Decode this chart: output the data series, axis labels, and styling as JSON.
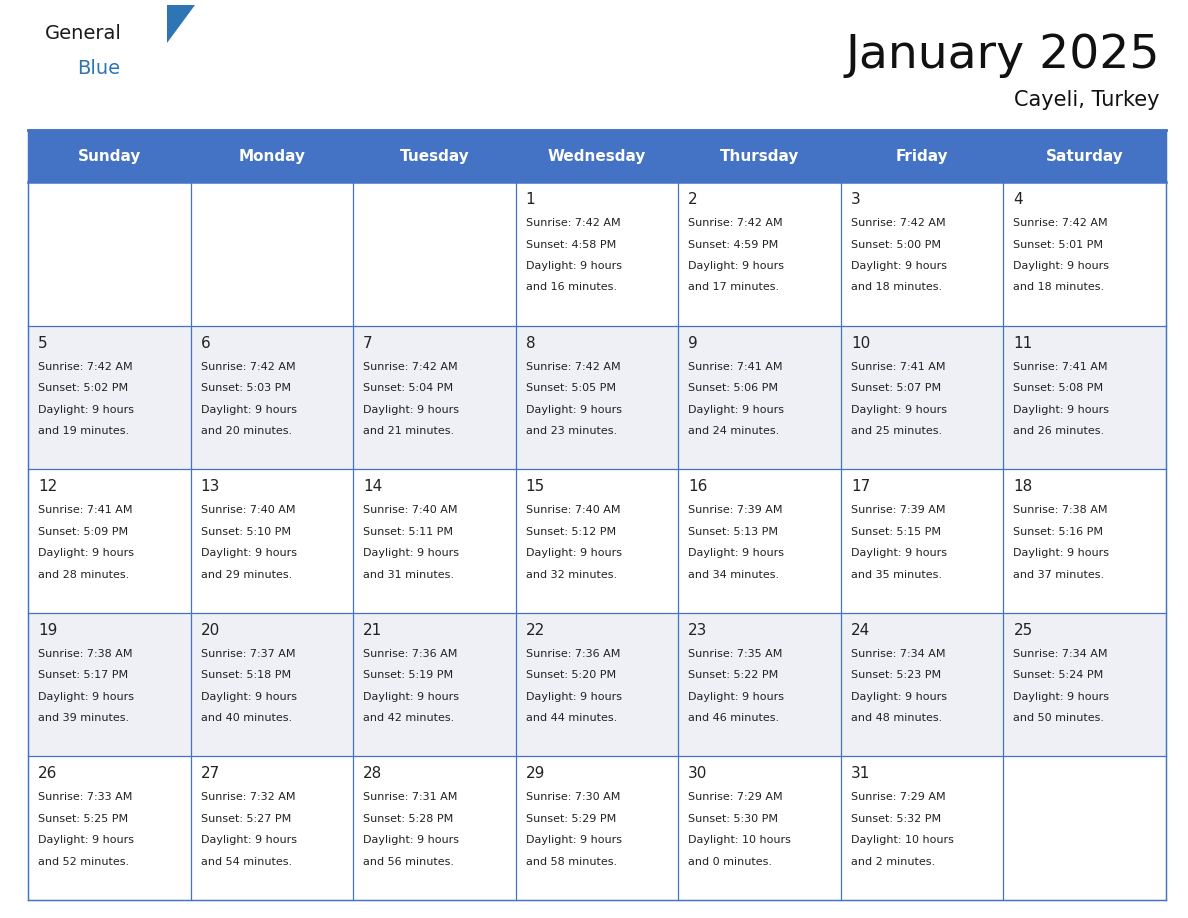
{
  "title": "January 2025",
  "subtitle": "Cayeli, Turkey",
  "days_of_week": [
    "Sunday",
    "Monday",
    "Tuesday",
    "Wednesday",
    "Thursday",
    "Friday",
    "Saturday"
  ],
  "header_bg": "#4472C4",
  "header_text": "#FFFFFF",
  "cell_bg_odd": "#FFFFFF",
  "cell_bg_even": "#EEF0F5",
  "grid_line_color": "#4472C4",
  "text_color": "#222222",
  "title_color": "#111111",
  "general_color": "#1a1a1a",
  "blue_color": "#2E75B6",
  "triangle_color": "#2E75B6",
  "calendar_data": [
    [
      {
        "day": null,
        "sunrise": null,
        "sunset": null,
        "daylight": null
      },
      {
        "day": null,
        "sunrise": null,
        "sunset": null,
        "daylight": null
      },
      {
        "day": null,
        "sunrise": null,
        "sunset": null,
        "daylight": null
      },
      {
        "day": 1,
        "sunrise": "7:42 AM",
        "sunset": "4:58 PM",
        "daylight": "9 hours and 16 minutes."
      },
      {
        "day": 2,
        "sunrise": "7:42 AM",
        "sunset": "4:59 PM",
        "daylight": "9 hours and 17 minutes."
      },
      {
        "day": 3,
        "sunrise": "7:42 AM",
        "sunset": "5:00 PM",
        "daylight": "9 hours and 18 minutes."
      },
      {
        "day": 4,
        "sunrise": "7:42 AM",
        "sunset": "5:01 PM",
        "daylight": "9 hours and 18 minutes."
      }
    ],
    [
      {
        "day": 5,
        "sunrise": "7:42 AM",
        "sunset": "5:02 PM",
        "daylight": "9 hours and 19 minutes."
      },
      {
        "day": 6,
        "sunrise": "7:42 AM",
        "sunset": "5:03 PM",
        "daylight": "9 hours and 20 minutes."
      },
      {
        "day": 7,
        "sunrise": "7:42 AM",
        "sunset": "5:04 PM",
        "daylight": "9 hours and 21 minutes."
      },
      {
        "day": 8,
        "sunrise": "7:42 AM",
        "sunset": "5:05 PM",
        "daylight": "9 hours and 23 minutes."
      },
      {
        "day": 9,
        "sunrise": "7:41 AM",
        "sunset": "5:06 PM",
        "daylight": "9 hours and 24 minutes."
      },
      {
        "day": 10,
        "sunrise": "7:41 AM",
        "sunset": "5:07 PM",
        "daylight": "9 hours and 25 minutes."
      },
      {
        "day": 11,
        "sunrise": "7:41 AM",
        "sunset": "5:08 PM",
        "daylight": "9 hours and 26 minutes."
      }
    ],
    [
      {
        "day": 12,
        "sunrise": "7:41 AM",
        "sunset": "5:09 PM",
        "daylight": "9 hours and 28 minutes."
      },
      {
        "day": 13,
        "sunrise": "7:40 AM",
        "sunset": "5:10 PM",
        "daylight": "9 hours and 29 minutes."
      },
      {
        "day": 14,
        "sunrise": "7:40 AM",
        "sunset": "5:11 PM",
        "daylight": "9 hours and 31 minutes."
      },
      {
        "day": 15,
        "sunrise": "7:40 AM",
        "sunset": "5:12 PM",
        "daylight": "9 hours and 32 minutes."
      },
      {
        "day": 16,
        "sunrise": "7:39 AM",
        "sunset": "5:13 PM",
        "daylight": "9 hours and 34 minutes."
      },
      {
        "day": 17,
        "sunrise": "7:39 AM",
        "sunset": "5:15 PM",
        "daylight": "9 hours and 35 minutes."
      },
      {
        "day": 18,
        "sunrise": "7:38 AM",
        "sunset": "5:16 PM",
        "daylight": "9 hours and 37 minutes."
      }
    ],
    [
      {
        "day": 19,
        "sunrise": "7:38 AM",
        "sunset": "5:17 PM",
        "daylight": "9 hours and 39 minutes."
      },
      {
        "day": 20,
        "sunrise": "7:37 AM",
        "sunset": "5:18 PM",
        "daylight": "9 hours and 40 minutes."
      },
      {
        "day": 21,
        "sunrise": "7:36 AM",
        "sunset": "5:19 PM",
        "daylight": "9 hours and 42 minutes."
      },
      {
        "day": 22,
        "sunrise": "7:36 AM",
        "sunset": "5:20 PM",
        "daylight": "9 hours and 44 minutes."
      },
      {
        "day": 23,
        "sunrise": "7:35 AM",
        "sunset": "5:22 PM",
        "daylight": "9 hours and 46 minutes."
      },
      {
        "day": 24,
        "sunrise": "7:34 AM",
        "sunset": "5:23 PM",
        "daylight": "9 hours and 48 minutes."
      },
      {
        "day": 25,
        "sunrise": "7:34 AM",
        "sunset": "5:24 PM",
        "daylight": "9 hours and 50 minutes."
      }
    ],
    [
      {
        "day": 26,
        "sunrise": "7:33 AM",
        "sunset": "5:25 PM",
        "daylight": "9 hours and 52 minutes."
      },
      {
        "day": 27,
        "sunrise": "7:32 AM",
        "sunset": "5:27 PM",
        "daylight": "9 hours and 54 minutes."
      },
      {
        "day": 28,
        "sunrise": "7:31 AM",
        "sunset": "5:28 PM",
        "daylight": "9 hours and 56 minutes."
      },
      {
        "day": 29,
        "sunrise": "7:30 AM",
        "sunset": "5:29 PM",
        "daylight": "9 hours and 58 minutes."
      },
      {
        "day": 30,
        "sunrise": "7:29 AM",
        "sunset": "5:30 PM",
        "daylight": "10 hours and 0 minutes."
      },
      {
        "day": 31,
        "sunrise": "7:29 AM",
        "sunset": "5:32 PM",
        "daylight": "10 hours and 2 minutes."
      },
      {
        "day": null,
        "sunrise": null,
        "sunset": null,
        "daylight": null
      }
    ]
  ]
}
